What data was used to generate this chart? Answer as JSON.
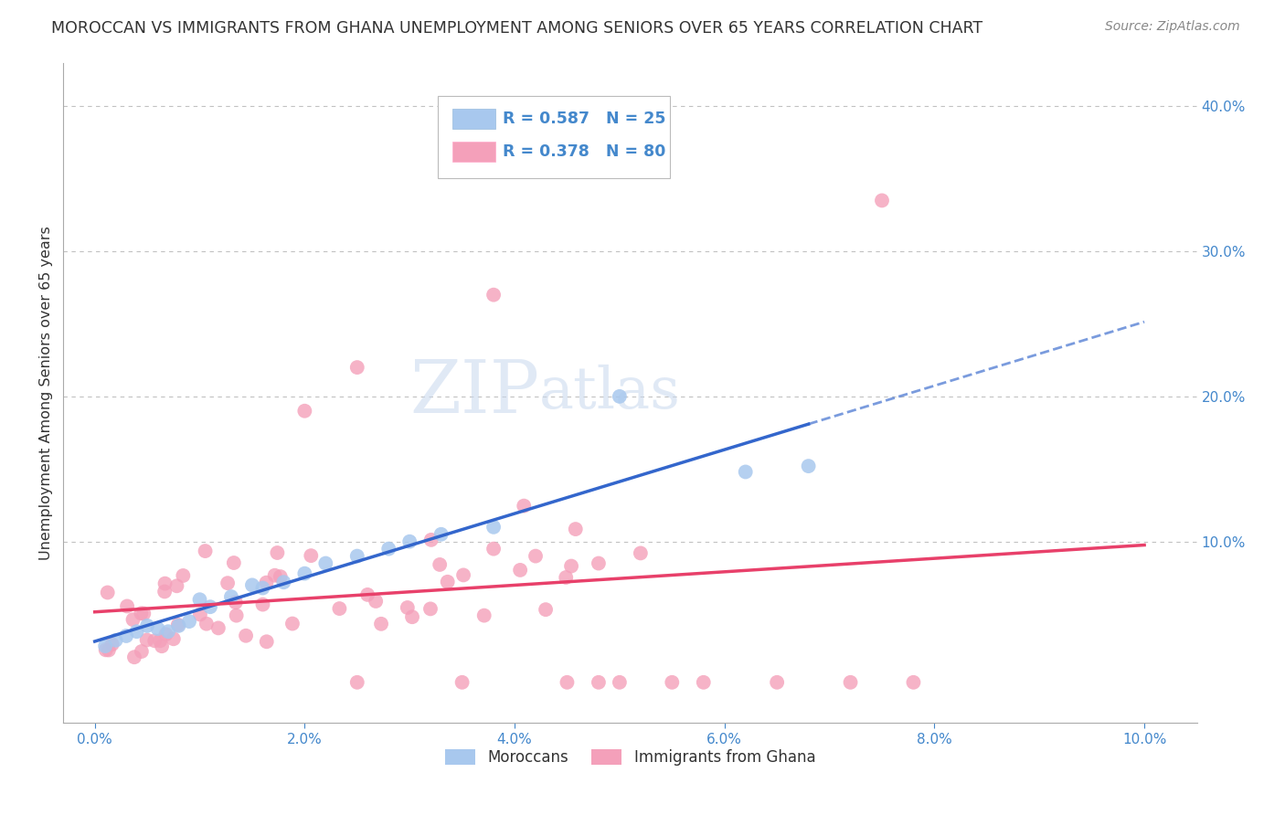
{
  "title": "MOROCCAN VS IMMIGRANTS FROM GHANA UNEMPLOYMENT AMONG SENIORS OVER 65 YEARS CORRELATION CHART",
  "source": "Source: ZipAtlas.com",
  "ylabel": "Unemployment Among Seniors over 65 years",
  "legend_bottom": [
    "Moroccans",
    "Immigrants from Ghana"
  ],
  "moroccan": {
    "R": 0.587,
    "N": 25,
    "color": "#A8C8EE",
    "line_color": "#3366CC"
  },
  "ghana": {
    "R": 0.378,
    "N": 80,
    "color": "#F4A0BA",
    "line_color": "#E8406A"
  },
  "xlim": [
    -0.003,
    0.105
  ],
  "ylim": [
    -0.025,
    0.43
  ],
  "background_color": "#FFFFFF",
  "grid_color": "#BBBBBB",
  "title_color": "#333333",
  "axis_color": "#4488CC",
  "watermark_zip": "ZIP",
  "watermark_atlas": "atlas",
  "watermark_color_zip": "#C5D8EE",
  "watermark_color_atlas": "#C5D8EE"
}
